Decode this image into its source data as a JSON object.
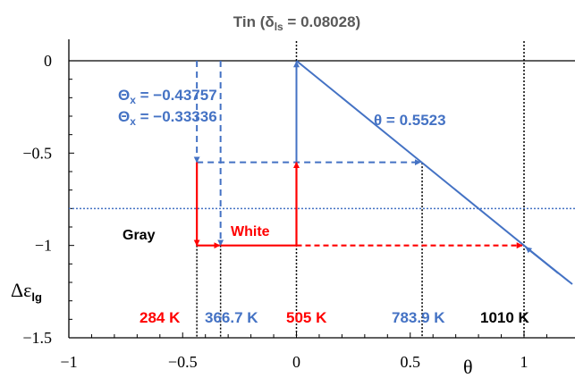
{
  "colors": {
    "blue": "#4472c4",
    "red": "#ff0000",
    "black": "#000000"
  },
  "chart_data": {
    "type": "line",
    "title_main": "Tin (δ",
    "title_sub": "ls",
    "title_tail": " = 0.08028)",
    "xlabel": "θ",
    "ylabel_main": "Δε",
    "ylabel_sub": "lg",
    "xlim": [
      -1,
      1.15
    ],
    "ylim": [
      -1.5,
      0
    ],
    "x_ticks": [
      {
        "value": -1,
        "label": "−1"
      },
      {
        "value": -0.5,
        "label": "−0.5"
      },
      {
        "value": 0,
        "label": "0"
      },
      {
        "value": 0.5,
        "label": "0.5"
      },
      {
        "value": 1,
        "label": "1"
      }
    ],
    "y_ticks": [
      {
        "value": 0,
        "label": "0"
      },
      {
        "value": -0.5,
        "label": "−0.5"
      },
      {
        "value": -1,
        "label": "−1"
      },
      {
        "value": -1.5,
        "label": "−1.5"
      }
    ],
    "main_line": {
      "points": [
        [
          0,
          0
        ],
        [
          1.15,
          -1.15
        ]
      ],
      "color": "blue"
    },
    "dotted_hline_y": -0.8,
    "vertical_guides": [
      0,
      1,
      0.5523
    ],
    "annotations": {
      "theta_value": "θ = 0.5523",
      "theta_x_1": "Θ",
      "theta_x_1_sub": "x",
      "theta_x_1_val": " = −0.43757",
      "theta_x_2": "Θ",
      "theta_x_2_sub": "x",
      "theta_x_2_val": " = −0.33336",
      "gray_label": "Gray",
      "white_label": "White"
    },
    "temperatures": [
      {
        "x": -0.43757,
        "label": "284 K",
        "color": "red"
      },
      {
        "x": -0.33336,
        "label": "366.7 K",
        "color": "blue"
      },
      {
        "x": 0,
        "label": "505 K",
        "color": "red"
      },
      {
        "x": 0.5523,
        "label": "783.9 K",
        "color": "blue"
      },
      {
        "x": 1,
        "label": "1010  K",
        "color": "black"
      }
    ],
    "gray_x": -0.43757,
    "white_x": -0.33336,
    "theta": 0.5523
  }
}
